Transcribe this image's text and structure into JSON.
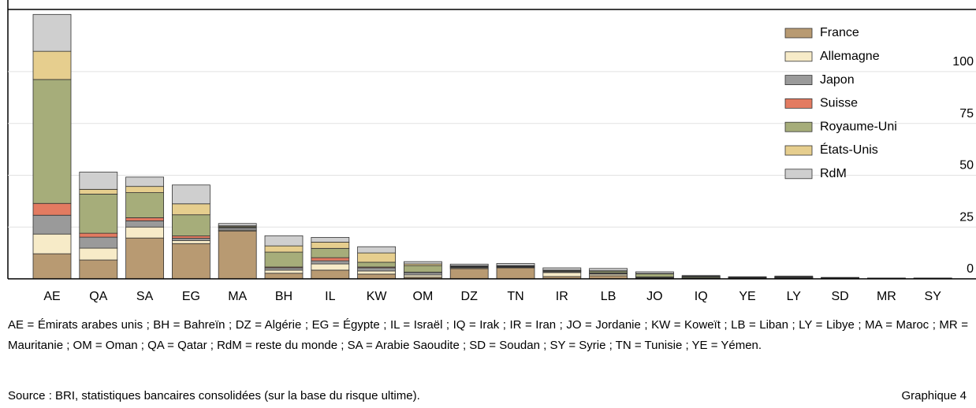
{
  "chart_data": {
    "type": "stacked_bar",
    "categories": [
      "AE",
      "QA",
      "SA",
      "EG",
      "MA",
      "BH",
      "IL",
      "KW",
      "OM",
      "DZ",
      "TN",
      "IR",
      "LB",
      "JO",
      "IQ",
      "YE",
      "LY",
      "SD",
      "MR",
      "SY"
    ],
    "series": [
      {
        "name": "France",
        "color": "#b89a72",
        "values": [
          12.1,
          9.1,
          19.7,
          17,
          23.1,
          2.7,
          4.2,
          2.3,
          0.8,
          4.9,
          5.3,
          1.1,
          1.5,
          0.4,
          0.2,
          0.3,
          0.3,
          0.2,
          0.2,
          0.1
        ]
      },
      {
        "name": "Allemagne",
        "color": "#f7ebc8",
        "values": [
          9.5,
          5.7,
          5.3,
          1.5,
          0.4,
          1.5,
          3,
          1.5,
          1.1,
          0.4,
          0.3,
          1.9,
          0.8,
          0.2,
          0.1,
          0.1,
          0.1,
          0.1,
          0,
          0.1
        ]
      },
      {
        "name": "Japon",
        "color": "#9a9a9a",
        "values": [
          9.1,
          5.3,
          3,
          1.1,
          1.1,
          1.1,
          1.5,
          1.5,
          1.1,
          0.3,
          0.2,
          0.4,
          0.4,
          0.2,
          0.1,
          0.1,
          0.1,
          0,
          0,
          0
        ]
      },
      {
        "name": "Suisse",
        "color": "#e37b61",
        "values": [
          5.7,
          1.9,
          1.5,
          1.1,
          0.2,
          0.4,
          1.5,
          0.4,
          0.2,
          0.2,
          0.2,
          0.2,
          0.2,
          0.1,
          0.1,
          0,
          0.1,
          0,
          0,
          0
        ]
      },
      {
        "name": "Royaume-Uni",
        "color": "#a6ad7a",
        "values": [
          59.8,
          18.9,
          12.1,
          10.2,
          0.4,
          7.2,
          4.5,
          2.3,
          3.2,
          0.3,
          0.2,
          0.4,
          0.8,
          1.5,
          0.5,
          0.2,
          0.3,
          0.2,
          0.1,
          0.1
        ]
      },
      {
        "name": "États-Unis",
        "color": "#e6ce8e",
        "values": [
          13.6,
          2.3,
          3,
          5.3,
          0.4,
          3,
          3,
          4.5,
          0.8,
          0.2,
          0.2,
          0.2,
          0.2,
          0.2,
          0.3,
          0.1,
          0.1,
          0,
          0,
          0
        ]
      },
      {
        "name": "RdM",
        "color": "#cfcfcf",
        "values": [
          17.8,
          8.3,
          4.5,
          9.1,
          1.1,
          4.9,
          2.3,
          3,
          1.1,
          0.8,
          1,
          1.1,
          1.1,
          0.8,
          0.3,
          0.2,
          0.3,
          0.2,
          0.1,
          0.1
        ]
      }
    ],
    "ylim": [
      0,
      130
    ],
    "yticks": [
      0,
      25,
      50,
      75,
      100
    ],
    "grid": true,
    "legend": "top-right",
    "note": "AE = Émirats arabes unis ; BH = Bahreïn ; DZ = Algérie ; EG = Égypte ; IL = Israël ; IQ = Irak ; IR = Iran ; JO = Jordanie ; KW = Koweït ; LB = Liban ; LY = Libye ; MA = Maroc ; MR = Mauritanie ; OM = Oman ; QA = Qatar ; RdM = reste du monde ; SA = Arabie Saoudite ; SD = Soudan ; SY = Syrie ; TN = Tunisie ; YE = Yémen.",
    "source": "Source : BRI, statistiques bancaires consolidées (sur la base du risque ultime).",
    "figure": "Graphique 4"
  }
}
